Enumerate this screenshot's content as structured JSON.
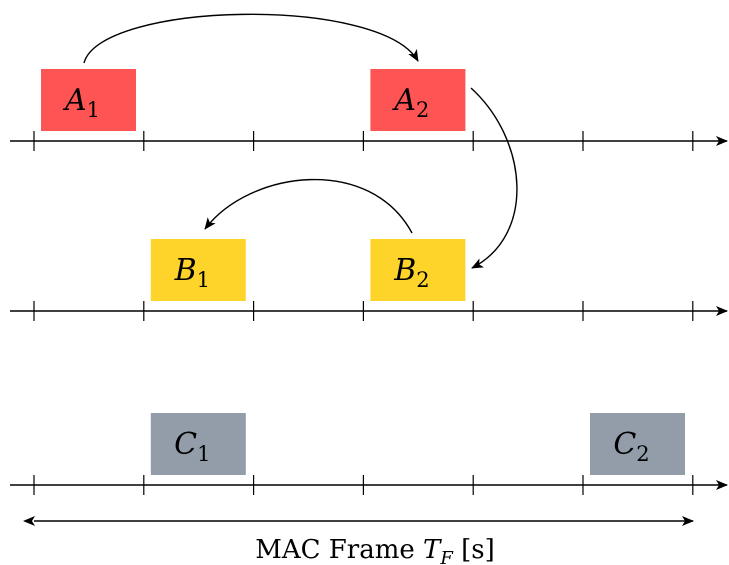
{
  "colors": {
    "A": "#ff5454",
    "B": "#ffd42a",
    "C": "#939daa",
    "line": "#000000"
  },
  "rows": [
    {
      "id": "A",
      "slots": [
        {
          "letter": "A",
          "sub": "1",
          "slot": 0
        },
        {
          "letter": "A",
          "sub": "2",
          "slot": 3
        }
      ]
    },
    {
      "id": "B",
      "slots": [
        {
          "letter": "B",
          "sub": "1",
          "slot": 1
        },
        {
          "letter": "B",
          "sub": "2",
          "slot": 3
        }
      ]
    },
    {
      "id": "C",
      "slots": [
        {
          "letter": "C",
          "sub": "1",
          "slot": 1
        },
        {
          "letter": "C",
          "sub": "2",
          "slot": 5
        }
      ]
    }
  ],
  "tick_count": 7,
  "caption": {
    "prefix": "MAC Frame ",
    "var": "T",
    "sub": "F",
    "suffix": " [s]"
  }
}
